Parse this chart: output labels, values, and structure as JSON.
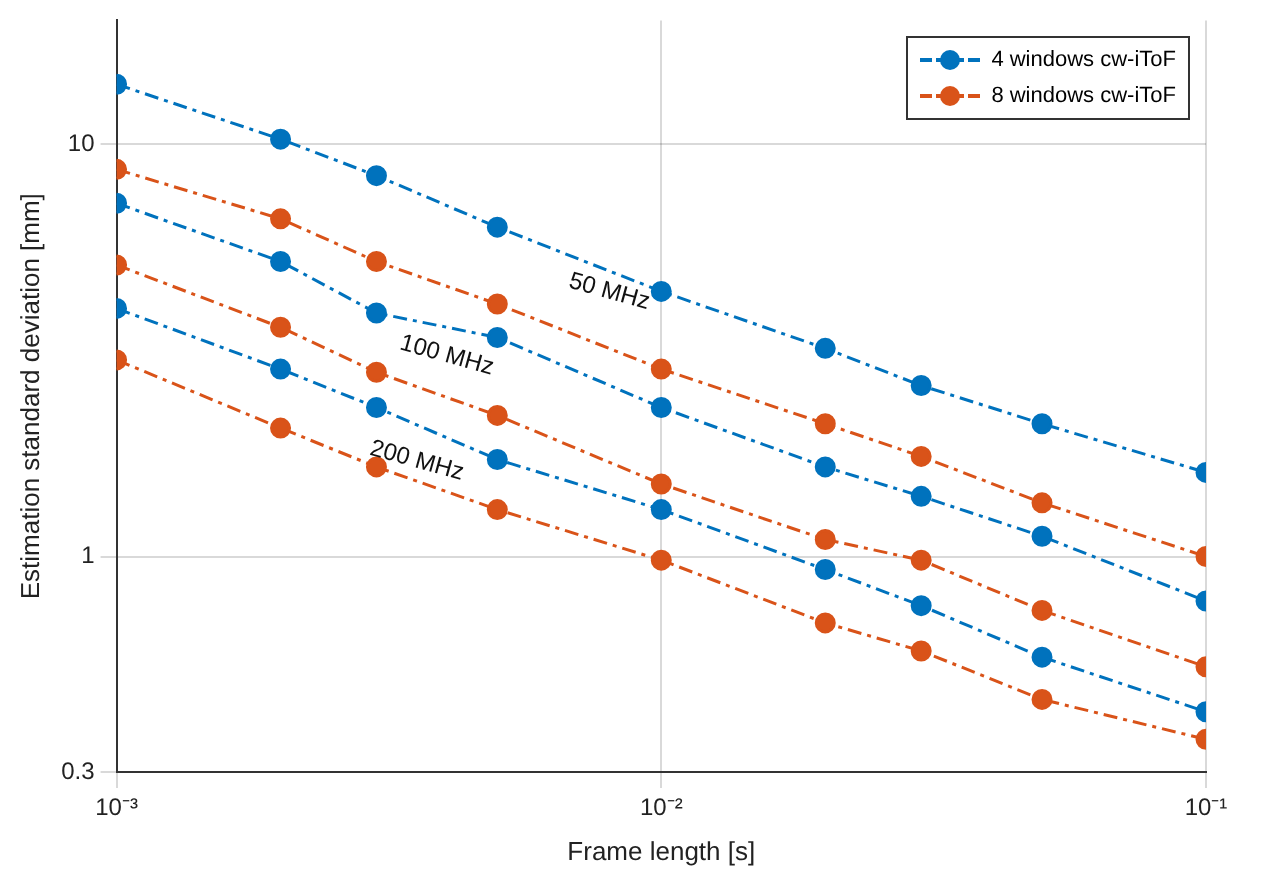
{
  "chart_data": {
    "type": "line",
    "xlabel": "Frame length [s]",
    "ylabel": "Estimation standard deviation [mm]",
    "x": [
      0.001,
      0.002,
      0.003,
      0.005,
      0.01,
      0.02,
      0.03,
      0.05,
      0.1
    ],
    "series": [
      {
        "name": "4 windows cw-iToF",
        "color": "#0072bd",
        "values": [
          14.0,
          10.3,
          8.4,
          6.3,
          4.4,
          3.2,
          2.6,
          2.1,
          1.6
        ]
      },
      {
        "name": "8 windows cw-iToF",
        "color": "#d95319",
        "values": [
          8.7,
          6.6,
          5.2,
          4.1,
          2.85,
          2.1,
          1.75,
          1.35,
          1.0
        ]
      },
      {
        "color": "#0072bd",
        "values": [
          7.2,
          5.2,
          3.9,
          3.4,
          2.3,
          1.65,
          1.4,
          1.12,
          0.78
        ]
      },
      {
        "color": "#d95319",
        "values": [
          5.1,
          3.6,
          2.8,
          2.2,
          1.5,
          1.1,
          0.98,
          0.74,
          0.54
        ]
      },
      {
        "color": "#0072bd",
        "values": [
          4.0,
          2.85,
          2.3,
          1.72,
          1.3,
          0.93,
          0.76,
          0.57,
          0.42
        ]
      },
      {
        "color": "#d95319",
        "values": [
          3.0,
          2.05,
          1.65,
          1.3,
          0.98,
          0.69,
          0.59,
          0.45,
          0.36
        ]
      }
    ],
    "log": "xy",
    "xlim": [
      0.001,
      0.1
    ],
    "ylim": [
      0.3,
      20
    ],
    "xticks": [
      {
        "value": 0.001,
        "label": "10⁻³"
      },
      {
        "value": 0.01,
        "label": "10⁻²"
      },
      {
        "value": 0.1,
        "label": "10⁻¹"
      }
    ],
    "yticks": [
      0.3,
      1,
      10
    ],
    "grid": true,
    "legend": "top right",
    "marker": "circle",
    "line_style": "dashed",
    "annotations": [
      "50 MHz",
      "100 MHz",
      "200 MHz"
    ]
  }
}
